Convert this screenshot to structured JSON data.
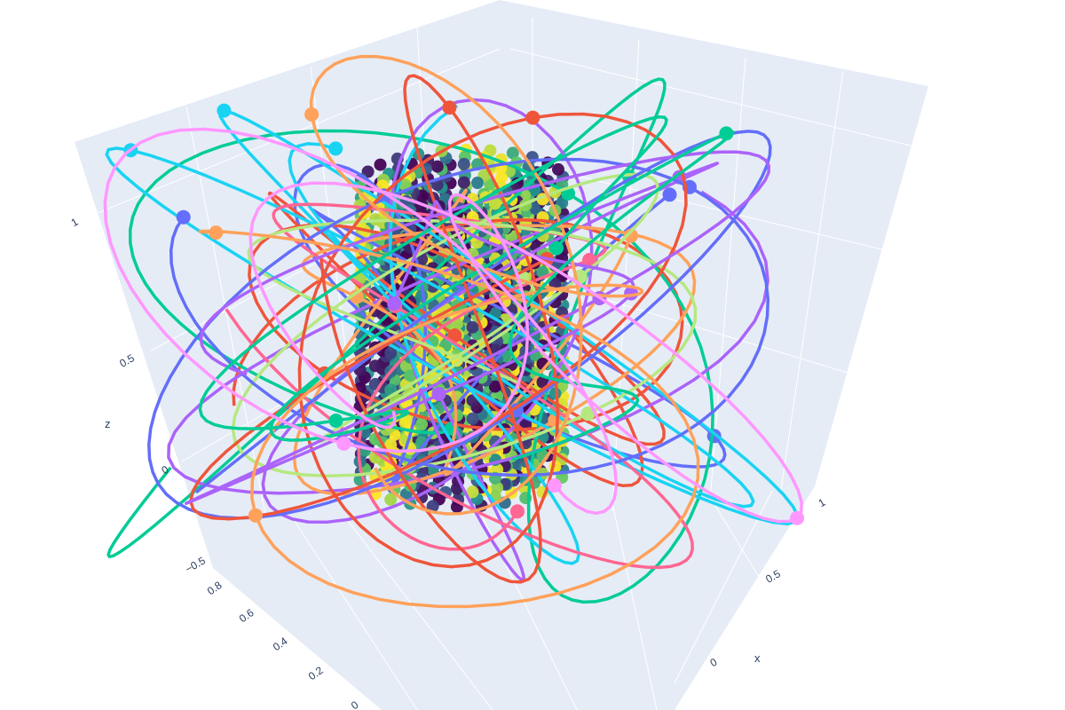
{
  "chart_data": {
    "type": "scatter",
    "mode": "3d-lines-markers",
    "title": "",
    "axes": {
      "x": {
        "label": "x",
        "range": [
          -0.5,
          1.2
        ],
        "ticks": [
          "0",
          "0.5",
          "1"
        ]
      },
      "y": {
        "label": "",
        "range": [
          -0.1,
          0.9
        ],
        "ticks": [
          "0",
          "0.2",
          "0.4",
          "0.6",
          "0.8"
        ]
      },
      "z": {
        "label": "z",
        "range": [
          -0.55,
          1.3
        ],
        "ticks": [
          "−0.5",
          "0",
          "0.5",
          "1"
        ]
      }
    },
    "scene": {
      "background": "#e5ecf6",
      "grid_color": "#ffffff",
      "grid": true,
      "legend": "none"
    },
    "colorscale": [
      "#440154",
      "#3b528b",
      "#21918c",
      "#5ec962",
      "#fde725"
    ],
    "cylinder_points": {
      "center_x": 0.45,
      "center_y": 0.4,
      "radius": 0.28,
      "z_range": [
        0.0,
        1.0
      ],
      "rings": 3
    },
    "trajectories": [
      {
        "color": "#636efa"
      },
      {
        "color": "#EF553B"
      },
      {
        "color": "#00cc96"
      },
      {
        "color": "#ab63fa"
      },
      {
        "color": "#FFA15A"
      },
      {
        "color": "#19d3f3"
      },
      {
        "color": "#FF6692"
      },
      {
        "color": "#B6E880"
      },
      {
        "color": "#636efa"
      },
      {
        "color": "#EF553B"
      },
      {
        "color": "#ab63fa"
      },
      {
        "color": "#FFA15A"
      },
      {
        "color": "#00cc96"
      },
      {
        "color": "#FF97FF"
      }
    ]
  }
}
